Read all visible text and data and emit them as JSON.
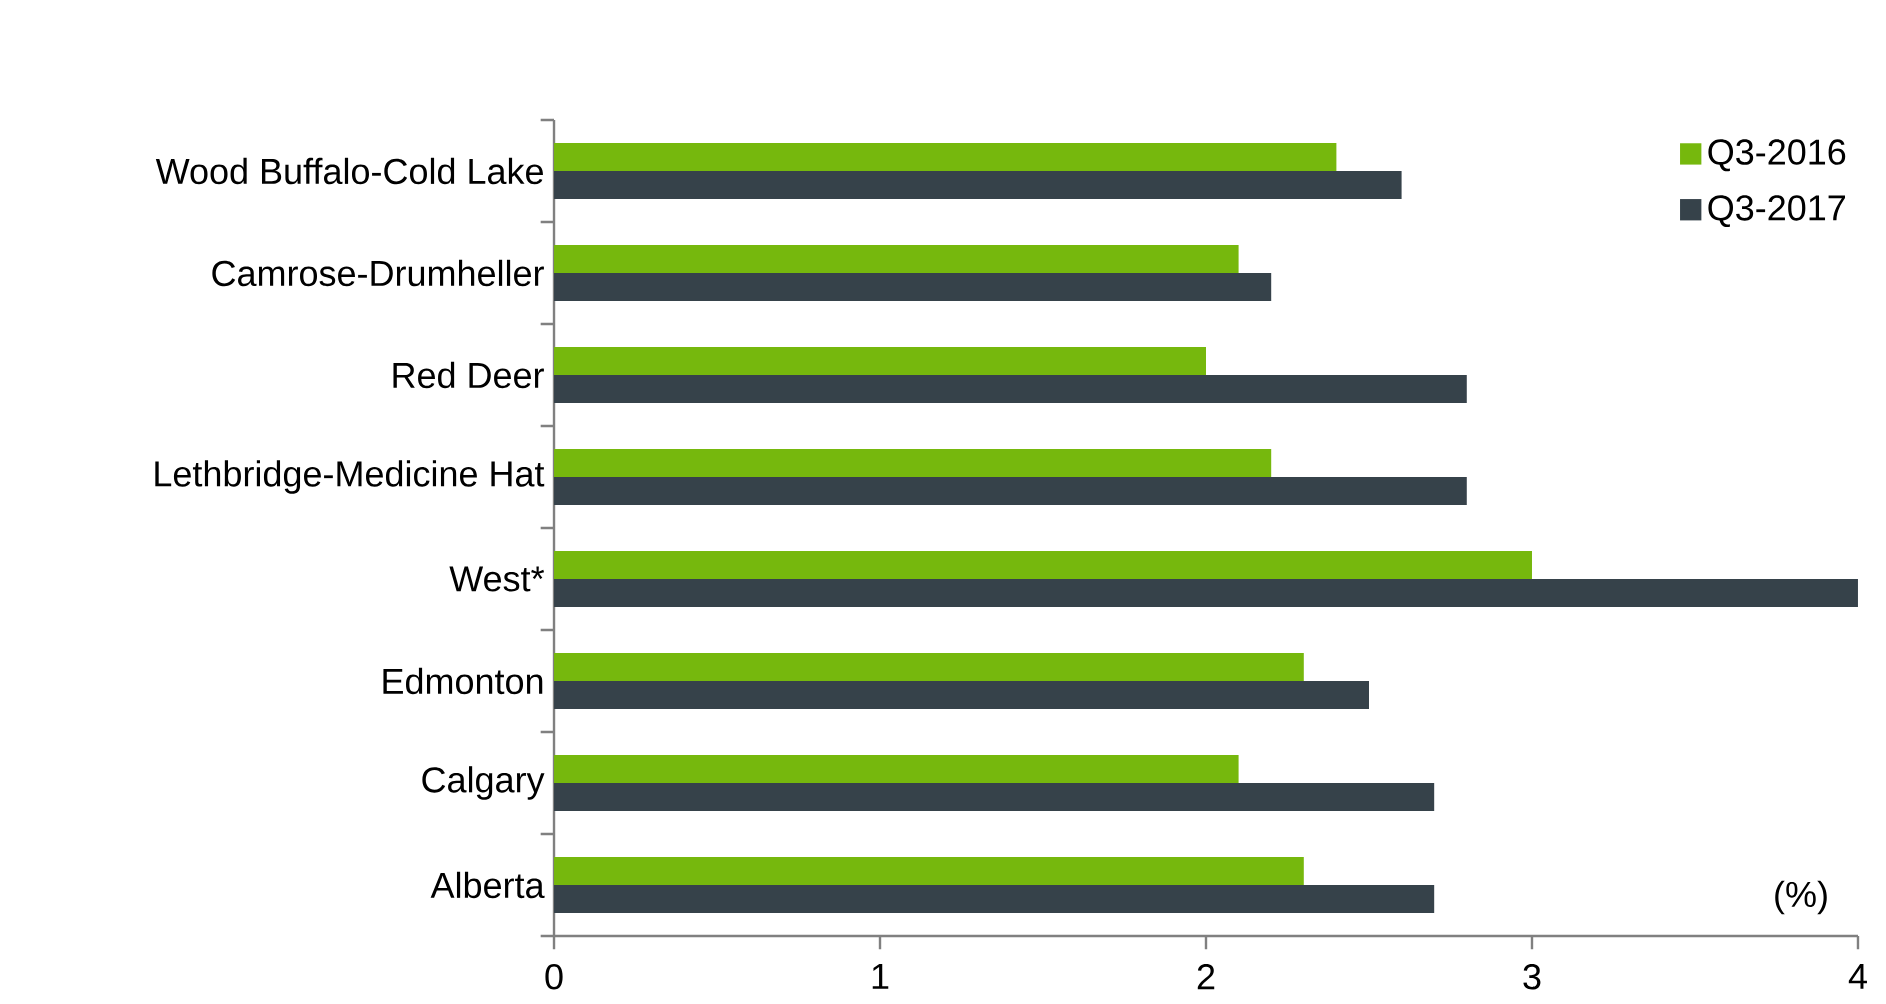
{
  "chart_data": {
    "type": "bar",
    "orientation": "horizontal",
    "categories": [
      "Wood Buffalo-Cold Lake",
      "Camrose-Drumheller",
      "Red Deer",
      "Lethbridge-Medicine Hat",
      "West*",
      "Edmonton",
      "Calgary",
      "Alberta"
    ],
    "series": [
      {
        "name": "Q3-2016",
        "color": "#76b80d",
        "values": [
          2.4,
          2.1,
          2.0,
          2.2,
          3.0,
          2.3,
          2.1,
          2.3
        ]
      },
      {
        "name": "Q3-2017",
        "color": "#36424a",
        "values": [
          2.6,
          2.2,
          2.8,
          2.8,
          4.0,
          2.5,
          2.7,
          2.7
        ]
      }
    ],
    "xlim": [
      0,
      4
    ],
    "xticks": [
      0,
      1,
      2,
      3,
      4
    ],
    "legend": "top right",
    "annotations": [
      "(%)"
    ]
  }
}
